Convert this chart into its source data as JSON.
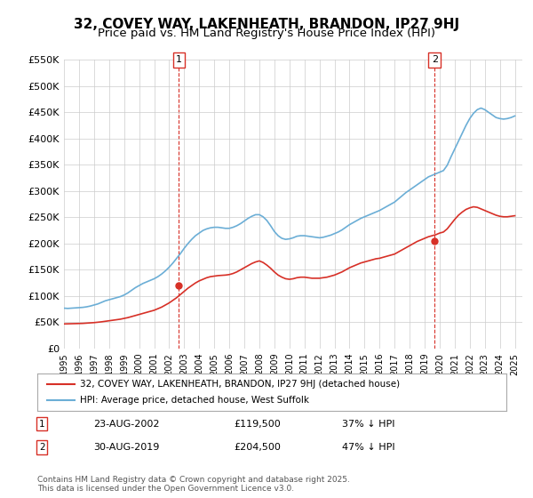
{
  "title": "32, COVEY WAY, LAKENHEATH, BRANDON, IP27 9HJ",
  "subtitle": "Price paid vs. HM Land Registry's House Price Index (HPI)",
  "xlabel": "",
  "ylabel": "",
  "ylim": [
    0,
    550000
  ],
  "yticks": [
    0,
    50000,
    100000,
    150000,
    200000,
    250000,
    300000,
    350000,
    400000,
    450000,
    500000,
    550000
  ],
  "ytick_labels": [
    "£0",
    "£50K",
    "£100K",
    "£150K",
    "£200K",
    "£250K",
    "£300K",
    "£350K",
    "£400K",
    "£450K",
    "£500K",
    "£550K"
  ],
  "xlim_start": 1995.0,
  "xlim_end": 2025.5,
  "hpi_color": "#6baed6",
  "price_color": "#d73027",
  "dashed_color": "#d73027",
  "background_color": "#ffffff",
  "grid_color": "#cccccc",
  "transaction1_x": 2002.65,
  "transaction1_y": 119500,
  "transaction1_label": "1",
  "transaction2_x": 2019.67,
  "transaction2_y": 204500,
  "transaction2_label": "2",
  "legend_line1": "32, COVEY WAY, LAKENHEATH, BRANDON, IP27 9HJ (detached house)",
  "legend_line2": "HPI: Average price, detached house, West Suffolk",
  "ann1_date": "23-AUG-2002",
  "ann1_price": "£119,500",
  "ann1_hpi": "37% ↓ HPI",
  "ann2_date": "30-AUG-2019",
  "ann2_price": "£204,500",
  "ann2_hpi": "47% ↓ HPI",
  "footer": "Contains HM Land Registry data © Crown copyright and database right 2025.\nThis data is licensed under the Open Government Licence v3.0.",
  "title_fontsize": 11,
  "subtitle_fontsize": 9.5,
  "tick_fontsize": 8,
  "hpi_years": [
    1995.0,
    1995.25,
    1995.5,
    1995.75,
    1996.0,
    1996.25,
    1996.5,
    1996.75,
    1997.0,
    1997.25,
    1997.5,
    1997.75,
    1998.0,
    1998.25,
    1998.5,
    1998.75,
    1999.0,
    1999.25,
    1999.5,
    1999.75,
    2000.0,
    2000.25,
    2000.5,
    2000.75,
    2001.0,
    2001.25,
    2001.5,
    2001.75,
    2002.0,
    2002.25,
    2002.5,
    2002.75,
    2003.0,
    2003.25,
    2003.5,
    2003.75,
    2004.0,
    2004.25,
    2004.5,
    2004.75,
    2005.0,
    2005.25,
    2005.5,
    2005.75,
    2006.0,
    2006.25,
    2006.5,
    2006.75,
    2007.0,
    2007.25,
    2007.5,
    2007.75,
    2008.0,
    2008.25,
    2008.5,
    2008.75,
    2009.0,
    2009.25,
    2009.5,
    2009.75,
    2010.0,
    2010.25,
    2010.5,
    2010.75,
    2011.0,
    2011.25,
    2011.5,
    2011.75,
    2012.0,
    2012.25,
    2012.5,
    2012.75,
    2013.0,
    2013.25,
    2013.5,
    2013.75,
    2014.0,
    2014.25,
    2014.5,
    2014.75,
    2015.0,
    2015.25,
    2015.5,
    2015.75,
    2016.0,
    2016.25,
    2016.5,
    2016.75,
    2017.0,
    2017.25,
    2017.5,
    2017.75,
    2018.0,
    2018.25,
    2018.5,
    2018.75,
    2019.0,
    2019.25,
    2019.5,
    2019.75,
    2020.0,
    2020.25,
    2020.5,
    2020.75,
    2021.0,
    2021.25,
    2021.5,
    2021.75,
    2022.0,
    2022.25,
    2022.5,
    2022.75,
    2023.0,
    2023.25,
    2023.5,
    2023.75,
    2024.0,
    2024.25,
    2024.5,
    2024.75,
    2025.0
  ],
  "hpi_values": [
    77000,
    76500,
    77000,
    77500,
    78000,
    78500,
    79500,
    81000,
    83000,
    85000,
    88000,
    91000,
    93000,
    95000,
    97000,
    99000,
    102000,
    106000,
    111000,
    116000,
    120000,
    124000,
    127000,
    130000,
    133000,
    137000,
    142000,
    148000,
    155000,
    163000,
    172000,
    181000,
    191000,
    200000,
    208000,
    215000,
    220000,
    225000,
    228000,
    230000,
    231000,
    231000,
    230000,
    229000,
    229000,
    231000,
    234000,
    238000,
    243000,
    248000,
    252000,
    255000,
    255000,
    251000,
    244000,
    234000,
    223000,
    215000,
    210000,
    208000,
    209000,
    211000,
    214000,
    215000,
    215000,
    214000,
    213000,
    212000,
    211000,
    212000,
    214000,
    216000,
    219000,
    222000,
    226000,
    231000,
    236000,
    240000,
    244000,
    248000,
    251000,
    254000,
    257000,
    260000,
    263000,
    267000,
    271000,
    275000,
    279000,
    285000,
    291000,
    297000,
    302000,
    307000,
    312000,
    317000,
    322000,
    327000,
    330000,
    333000,
    336000,
    339000,
    349000,
    365000,
    380000,
    395000,
    410000,
    425000,
    438000,
    448000,
    455000,
    458000,
    455000,
    450000,
    445000,
    440000,
    438000,
    437000,
    438000,
    440000,
    443000
  ],
  "price_years": [
    1995.0,
    1995.25,
    1995.5,
    1995.75,
    1996.0,
    1996.25,
    1996.5,
    1996.75,
    1997.0,
    1997.25,
    1997.5,
    1997.75,
    1998.0,
    1998.25,
    1998.5,
    1998.75,
    1999.0,
    1999.25,
    1999.5,
    1999.75,
    2000.0,
    2000.25,
    2000.5,
    2000.75,
    2001.0,
    2001.25,
    2001.5,
    2001.75,
    2002.0,
    2002.25,
    2002.5,
    2002.75,
    2003.0,
    2003.25,
    2003.5,
    2003.75,
    2004.0,
    2004.25,
    2004.5,
    2004.75,
    2005.0,
    2005.25,
    2005.5,
    2005.75,
    2006.0,
    2006.25,
    2006.5,
    2006.75,
    2007.0,
    2007.25,
    2007.5,
    2007.75,
    2008.0,
    2008.25,
    2008.5,
    2008.75,
    2009.0,
    2009.25,
    2009.5,
    2009.75,
    2010.0,
    2010.25,
    2010.5,
    2010.75,
    2011.0,
    2011.25,
    2011.5,
    2011.75,
    2012.0,
    2012.25,
    2012.5,
    2012.75,
    2013.0,
    2013.25,
    2013.5,
    2013.75,
    2014.0,
    2014.25,
    2014.5,
    2014.75,
    2015.0,
    2015.25,
    2015.5,
    2015.75,
    2016.0,
    2016.25,
    2016.5,
    2016.75,
    2017.0,
    2017.25,
    2017.5,
    2017.75,
    2018.0,
    2018.25,
    2018.5,
    2018.75,
    2019.0,
    2019.25,
    2019.5,
    2019.75,
    2020.0,
    2020.25,
    2020.5,
    2020.75,
    2021.0,
    2021.25,
    2021.5,
    2021.75,
    2022.0,
    2022.25,
    2022.5,
    2022.75,
    2023.0,
    2023.25,
    2023.5,
    2023.75,
    2024.0,
    2024.25,
    2024.5,
    2024.75,
    2025.0
  ],
  "price_values": [
    47000,
    47200,
    47400,
    47600,
    47800,
    48000,
    48500,
    49000,
    49500,
    50200,
    51000,
    52000,
    53000,
    54000,
    55000,
    56000,
    57500,
    59000,
    61000,
    63000,
    65000,
    67000,
    69000,
    71000,
    73000,
    76000,
    79000,
    83000,
    87000,
    92000,
    97000,
    103000,
    109000,
    115000,
    120000,
    125000,
    129000,
    132000,
    135000,
    137000,
    138000,
    139000,
    139500,
    140000,
    141000,
    143000,
    146000,
    150000,
    154000,
    158000,
    162000,
    165000,
    167000,
    164000,
    159000,
    153000,
    146000,
    140000,
    136000,
    133000,
    132000,
    133000,
    135000,
    136000,
    136000,
    135000,
    134000,
    134000,
    134000,
    135000,
    136000,
    138000,
    140000,
    143000,
    146000,
    150000,
    154000,
    157000,
    160000,
    163000,
    165000,
    167000,
    169000,
    171000,
    172000,
    174000,
    176000,
    178000,
    180000,
    184000,
    188000,
    192000,
    196000,
    200000,
    204000,
    207000,
    210000,
    213000,
    215000,
    217000,
    220000,
    222000,
    228000,
    237000,
    246000,
    254000,
    260000,
    265000,
    268000,
    270000,
    269000,
    266000,
    263000,
    260000,
    257000,
    254000,
    252000,
    251000,
    251000,
    252000,
    253000
  ]
}
